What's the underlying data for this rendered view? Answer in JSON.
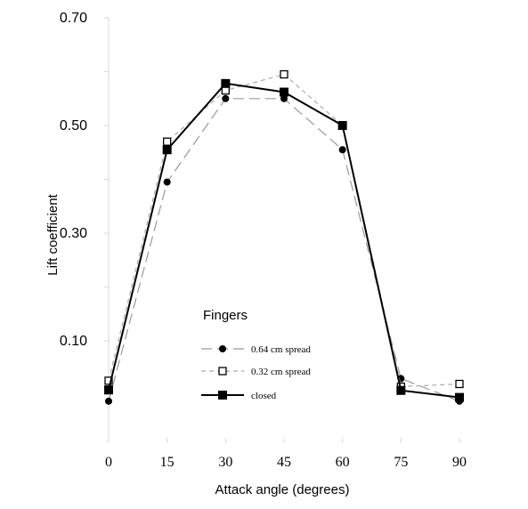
{
  "chart_data": {
    "type": "line",
    "xlabel": "Attack angle (degrees)",
    "ylabel": "Lift coefficient",
    "x": [
      0,
      15,
      30,
      45,
      60,
      75,
      90
    ],
    "x_tick_labels": [
      "0",
      "15",
      "30",
      "45",
      "60",
      "75",
      "90"
    ],
    "ylim": [
      -0.08,
      0.7
    ],
    "y_tick_labels": [
      "0.70",
      "0.50",
      "0.30",
      "0.10"
    ],
    "y_tick_values": [
      0.7,
      0.5,
      0.3,
      0.1
    ],
    "y_minor_ticks": [
      0.6,
      0.4,
      0.2,
      0.0
    ],
    "legend": {
      "title": "Fingers",
      "position": "bottom-left"
    },
    "series": [
      {
        "name": "0.64 cm spread",
        "values": [
          -0.012,
          0.395,
          0.55,
          0.55,
          0.455,
          0.03,
          -0.012
        ],
        "color": "#999999",
        "dash": "long-dash",
        "marker": "filled-circle"
      },
      {
        "name": "0.32 cm spread",
        "values": [
          0.026,
          0.47,
          0.565,
          0.595,
          0.5,
          0.015,
          0.02
        ],
        "color": "#aaaaaa",
        "dash": "short-dash",
        "marker": "open-square"
      },
      {
        "name": "closed",
        "values": [
          0.009,
          0.455,
          0.578,
          0.562,
          0.5,
          0.008,
          -0.005
        ],
        "color": "#000000",
        "dash": "solid",
        "marker": "filled-square"
      }
    ]
  }
}
